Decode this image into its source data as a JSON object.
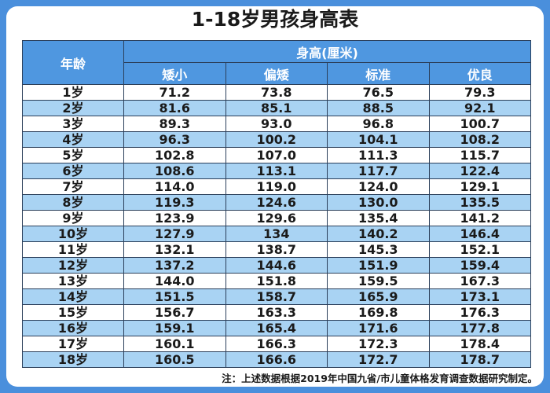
{
  "title": "1-18岁男孩身高表",
  "table": {
    "age_header": "年龄",
    "group_header": "身高(厘米)",
    "columns": [
      "矮小",
      "偏矮",
      "标准",
      "优良"
    ],
    "rows": [
      {
        "age": "1岁",
        "values": [
          "71.2",
          "73.8",
          "76.5",
          "79.3"
        ]
      },
      {
        "age": "2岁",
        "values": [
          "81.6",
          "85.1",
          "88.5",
          "92.1"
        ]
      },
      {
        "age": "3岁",
        "values": [
          "89.3",
          "93.0",
          "96.8",
          "100.7"
        ]
      },
      {
        "age": "4岁",
        "values": [
          "96.3",
          "100.2",
          "104.1",
          "108.2"
        ]
      },
      {
        "age": "5岁",
        "values": [
          "102.8",
          "107.0",
          "111.3",
          "115.7"
        ]
      },
      {
        "age": "6岁",
        "values": [
          "108.6",
          "113.1",
          "117.7",
          "122.4"
        ]
      },
      {
        "age": "7岁",
        "values": [
          "114.0",
          "119.0",
          "124.0",
          "129.1"
        ]
      },
      {
        "age": "8岁",
        "values": [
          "119.3",
          "124.6",
          "130.0",
          "135.5"
        ]
      },
      {
        "age": "9岁",
        "values": [
          "123.9",
          "129.6",
          "135.4",
          "141.2"
        ]
      },
      {
        "age": "10岁",
        "values": [
          "127.9",
          "134",
          "140.2",
          "146.4"
        ]
      },
      {
        "age": "11岁",
        "values": [
          "132.1",
          "138.7",
          "145.3",
          "152.1"
        ]
      },
      {
        "age": "12岁",
        "values": [
          "137.2",
          "144.6",
          "151.9",
          "159.4"
        ]
      },
      {
        "age": "13岁",
        "values": [
          "144.0",
          "151.8",
          "159.5",
          "167.3"
        ]
      },
      {
        "age": "14岁",
        "values": [
          "151.5",
          "158.7",
          "165.9",
          "173.1"
        ]
      },
      {
        "age": "15岁",
        "values": [
          "156.7",
          "163.3",
          "169.8",
          "176.3"
        ]
      },
      {
        "age": "16岁",
        "values": [
          "159.1",
          "165.4",
          "171.6",
          "177.8"
        ]
      },
      {
        "age": "17岁",
        "values": [
          "160.1",
          "166.3",
          "172.3",
          "178.4"
        ]
      },
      {
        "age": "18岁",
        "values": [
          "160.5",
          "166.6",
          "172.7",
          "178.7"
        ]
      }
    ]
  },
  "note": "注：上述数据根据2019年中国九省/市儿童体格发育调查数据研究制定。",
  "colors": {
    "background": "#4a8fdc",
    "header": "#4f97e0",
    "alt_row": "#a9d3f3"
  }
}
